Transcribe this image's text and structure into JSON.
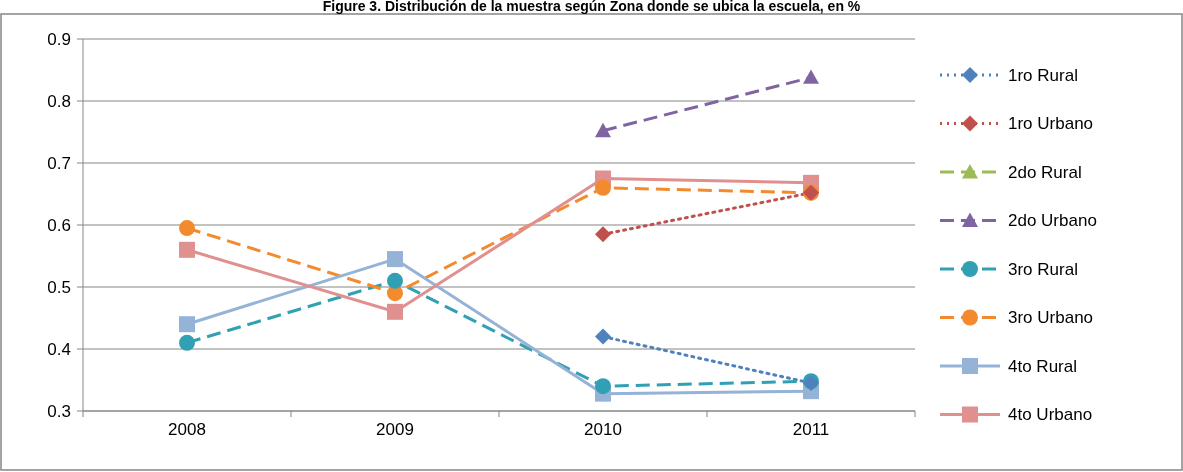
{
  "chart_data": {
    "type": "line",
    "title": "Figure 3. Distribución de la muestra según Zona donde se ubica la escuela, en %",
    "categories": [
      "2008",
      "2009",
      "2010",
      "2011"
    ],
    "ylim": [
      0.3,
      0.9
    ],
    "yticks": [
      0.3,
      0.4,
      0.5,
      0.6,
      0.7,
      0.8,
      0.9
    ],
    "grid": "y",
    "legend": "right",
    "series": [
      {
        "name": "1ro Rural",
        "color": "#4f81bd",
        "marker": "diamond",
        "line_style": "dotted",
        "values": [
          null,
          null,
          0.42,
          0.345
        ]
      },
      {
        "name": "1ro Urbano",
        "color": "#c0504d",
        "marker": "diamond",
        "line_style": "dotted",
        "values": [
          null,
          null,
          0.585,
          0.652
        ]
      },
      {
        "name": "2do Rural",
        "color": "#9bbb59",
        "marker": "triangle",
        "line_style": "dashed",
        "values": [
          null,
          null,
          null,
          null
        ]
      },
      {
        "name": "2do Urbano",
        "color": "#8064a2",
        "marker": "triangle",
        "line_style": "dashed",
        "values": [
          null,
          null,
          0.752,
          0.838
        ]
      },
      {
        "name": "3ro Rural",
        "color": "#31a0b4",
        "marker": "circle",
        "line_style": "dashed",
        "values": [
          0.41,
          0.51,
          0.34,
          0.348
        ]
      },
      {
        "name": "3ro Urbano",
        "color": "#f38a2e",
        "marker": "circle",
        "line_style": "dashed",
        "values": [
          0.595,
          0.49,
          0.66,
          0.652
        ]
      },
      {
        "name": "4to Rural",
        "color": "#95b3d7",
        "marker": "square",
        "line_style": "solid",
        "values": [
          0.44,
          0.545,
          0.328,
          0.332
        ]
      },
      {
        "name": "4to Urbano",
        "color": "#e0908e",
        "marker": "square",
        "line_style": "solid",
        "values": [
          0.56,
          0.46,
          0.675,
          0.668
        ]
      }
    ]
  }
}
